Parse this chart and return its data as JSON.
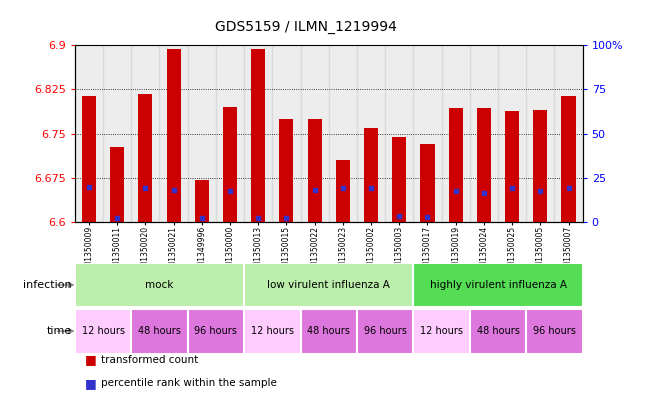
{
  "title": "GDS5159 / ILMN_1219994",
  "samples": [
    "GSM1350009",
    "GSM1350011",
    "GSM1350020",
    "GSM1350021",
    "GSM1349996",
    "GSM1350000",
    "GSM1350013",
    "GSM1350015",
    "GSM1350022",
    "GSM1350023",
    "GSM1350002",
    "GSM1350003",
    "GSM1350017",
    "GSM1350019",
    "GSM1350024",
    "GSM1350025",
    "GSM1350005",
    "GSM1350007"
  ],
  "bar_tops": [
    6.813,
    6.727,
    6.818,
    6.893,
    6.672,
    6.795,
    6.893,
    6.775,
    6.775,
    6.705,
    6.76,
    6.745,
    6.733,
    6.793,
    6.793,
    6.788,
    6.79,
    6.813
  ],
  "blue_marks": [
    6.66,
    6.607,
    6.658,
    6.655,
    6.607,
    6.652,
    6.607,
    6.607,
    6.655,
    6.657,
    6.658,
    6.61,
    6.608,
    6.652,
    6.65,
    6.657,
    6.652,
    6.658
  ],
  "bar_bottom": 6.6,
  "ylim": [
    6.6,
    6.9
  ],
  "yticks": [
    6.6,
    6.675,
    6.75,
    6.825,
    6.9
  ],
  "right_yticks": [
    0,
    25,
    50,
    75,
    100
  ],
  "right_yticklabels": [
    "0",
    "25",
    "50",
    "75",
    "100%"
  ],
  "bar_color": "#CC0000",
  "blue_color": "#3333CC",
  "inf_groups": [
    {
      "label": "mock",
      "start": 0,
      "end": 6,
      "color": "#AAEAAA"
    },
    {
      "label": "low virulent influenza A",
      "start": 6,
      "end": 12,
      "color": "#AAEAAA"
    },
    {
      "label": "highly virulent influenza A",
      "start": 12,
      "end": 18,
      "color": "#55DD55"
    }
  ],
  "time_groups": [
    {
      "label": "12 hours",
      "start": 0,
      "end": 2,
      "color": "#FFCCFF"
    },
    {
      "label": "48 hours",
      "start": 2,
      "end": 4,
      "color": "#EE88EE"
    },
    {
      "label": "96 hours",
      "start": 4,
      "end": 6,
      "color": "#EE88EE"
    },
    {
      "label": "12 hours",
      "start": 6,
      "end": 8,
      "color": "#FFCCFF"
    },
    {
      "label": "48 hours",
      "start": 8,
      "end": 10,
      "color": "#EE88EE"
    },
    {
      "label": "96 hours",
      "start": 10,
      "end": 12,
      "color": "#EE88EE"
    },
    {
      "label": "12 hours",
      "start": 12,
      "end": 14,
      "color": "#FFCCFF"
    },
    {
      "label": "48 hours",
      "start": 14,
      "end": 16,
      "color": "#EE88EE"
    },
    {
      "label": "96 hours",
      "start": 16,
      "end": 18,
      "color": "#EE88EE"
    }
  ],
  "sample_bg_color": "#CCCCCC",
  "fig_bg": "#FFFFFF"
}
